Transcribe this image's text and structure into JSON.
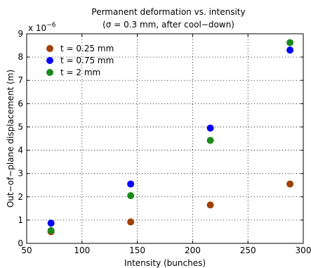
{
  "chart_data": {
    "type": "scatter",
    "title": "Permanent deformation vs. intensity",
    "subtitle": "(σ = 0.3 mm, after cool−down)",
    "xlabel": "Intensity (bunches)",
    "ylabel": "Out−of−plane displacement (m)",
    "y_multiplier_label": "x 10",
    "y_multiplier_exponent": "−6",
    "xlim": [
      50,
      300
    ],
    "ylim": [
      0,
      9
    ],
    "xticks": [
      50,
      100,
      150,
      200,
      250,
      300
    ],
    "yticks": [
      0,
      1,
      2,
      3,
      4,
      5,
      6,
      7,
      8,
      9
    ],
    "grid": true,
    "legend_position": "top-left",
    "series": [
      {
        "name": "t = 0.25 mm",
        "color": "#a0400a",
        "x": [
          72,
          144,
          216,
          288
        ],
        "y": [
          0.5,
          0.92,
          1.65,
          2.55
        ]
      },
      {
        "name": "t = 0.75 mm",
        "color": "#0000ff",
        "x": [
          72,
          144,
          216,
          288
        ],
        "y": [
          0.87,
          2.55,
          4.95,
          8.3
        ]
      },
      {
        "name": "t = 2 mm",
        "color": "#1a8a1a",
        "x": [
          72,
          144,
          216,
          288
        ],
        "y": [
          0.55,
          2.05,
          4.42,
          8.62
        ]
      }
    ]
  }
}
